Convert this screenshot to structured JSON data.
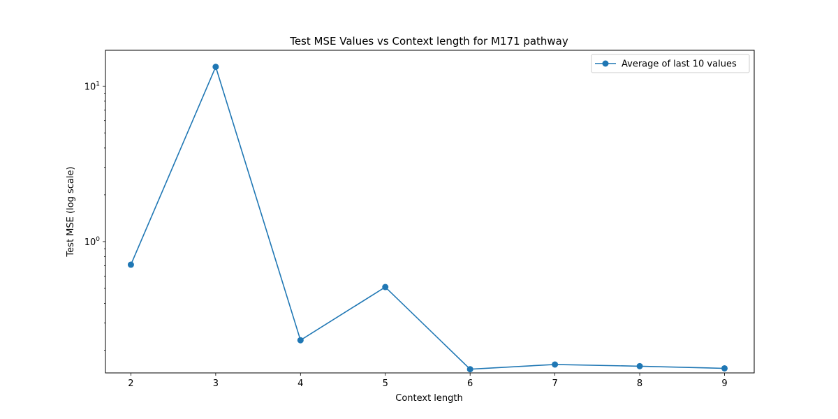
{
  "chart_data": {
    "type": "line",
    "title": "Test MSE Values vs Context length for M171 pathway",
    "xlabel": "Context length",
    "ylabel": "Test MSE (log scale)",
    "yscale": "log",
    "x": [
      2,
      3,
      4,
      5,
      6,
      7,
      8,
      9
    ],
    "xticks": [
      "2",
      "3",
      "4",
      "5",
      "6",
      "7",
      "8",
      "9"
    ],
    "xlim": [
      1.7,
      9.35
    ],
    "ylim": [
      0.143,
      17.0
    ],
    "yticks": [
      {
        "value": 1,
        "label_base": "10",
        "label_exp": "0"
      },
      {
        "value": 10,
        "label_base": "10",
        "label_exp": "1"
      }
    ],
    "series": [
      {
        "name": "Average of last 10 values",
        "color": "#1f77b4",
        "marker": "circle",
        "values": [
          0.71,
          13.3,
          0.232,
          0.51,
          0.151,
          0.162,
          0.158,
          0.153
        ]
      }
    ],
    "legend": {
      "position": "top-right"
    },
    "grid": false
  }
}
